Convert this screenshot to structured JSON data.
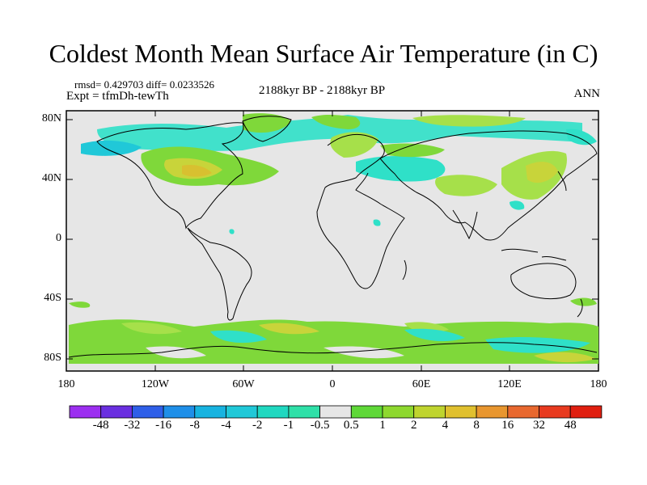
{
  "title": "Coldest Month Mean Surface Air Temperature (in C)",
  "stats": "rmsd= 0.429703 diff= 0.0233526",
  "experiment": "Expt = tfmDh-tewTh",
  "period": "2188kyr BP - 2188kyr BP",
  "season": "ANN",
  "lat_labels": [
    "80N",
    "40N",
    "0",
    "40S",
    "80S"
  ],
  "lon_labels": [
    "180",
    "120W",
    "60W",
    "0",
    "60E",
    "120E",
    "180"
  ],
  "colorbar": {
    "labels": [
      "-48",
      "-32",
      "-16",
      "-8",
      "-4",
      "-2",
      "-1",
      "-0.5",
      "0.5",
      "1",
      "2",
      "4",
      "8",
      "16",
      "32",
      "48"
    ],
    "colors": [
      "#9c2ff0",
      "#6a2fe0",
      "#2f5fe8",
      "#1f8fe8",
      "#17b3e0",
      "#20c8d8",
      "#20d8c0",
      "#2fe0a8",
      "#e6e6e6",
      "#5fd838",
      "#8ed82f",
      "#bfd42f",
      "#e0c02f",
      "#e8962f",
      "#e8682f",
      "#e83a1f",
      "#e01f10"
    ]
  },
  "colors": {
    "land_outline": "#000000",
    "background": "#e6e6e6",
    "green": "#7fd83a",
    "light_green": "#a6e04a",
    "yellow": "#c8d43a",
    "cyan": "#2fe0c8",
    "teal": "#20c8d8"
  }
}
